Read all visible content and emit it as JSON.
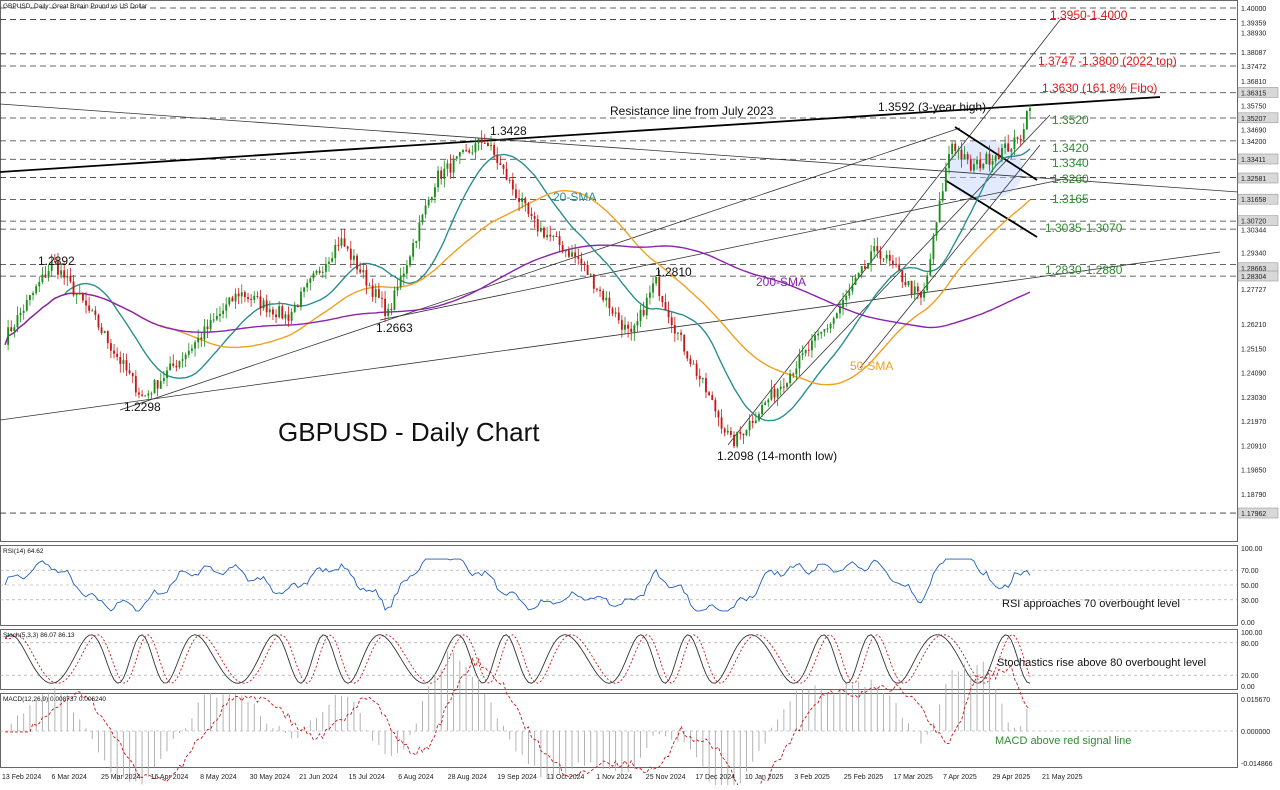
{
  "header": {
    "main_title": "GBPUSD, Daily:  Great Britain Pound vs US Dollar",
    "chart_title": "GBPUSD - Daily Chart"
  },
  "price_axis": {
    "labels": [
      "1.40000",
      "1.39359",
      "1.38930",
      "1.38087",
      "1.37472",
      "1.36810",
      "1.36315",
      "1.35750",
      "1.35207",
      "1.34690",
      "1.34200",
      "1.33411",
      "1.32581",
      "1.31658",
      "1.30720",
      "1.30344",
      "1.29340",
      "1.28663",
      "1.28304",
      "1.27727",
      "1.26210",
      "1.25150",
      "1.24090",
      "1.23030",
      "1.21970",
      "1.20910",
      "1.19850",
      "1.18790",
      "1.17962"
    ],
    "highlight": [
      "1.36315",
      "1.35207",
      "1.33411",
      "1.32581",
      "1.31658",
      "1.30720",
      "1.28663",
      "1.28304",
      "1.17962"
    ]
  },
  "date_axis": [
    "13 Feb 2024",
    "6 Mar 2024",
    "25 Mar 2024",
    "16 Apr 2024",
    "8 May 2024",
    "30 May 2024",
    "21 Jun 2024",
    "15 Jul 2024",
    "6 Aug 2024",
    "28 Aug 2024",
    "19 Sep 2024",
    "11 Oct 2024",
    "1 Nov 2024",
    "25 Nov 2024",
    "17 Dec 2024",
    "10 Jan 2025",
    "3 Feb 2025",
    "25 Feb 2025",
    "17 Mar 2025",
    "7 Apr 2025",
    "29 Apr 2025",
    "21 May 2025"
  ],
  "levels": {
    "r1": "1.3950-1.4000",
    "r2": "1.3747 -1.3800 (2022 top)",
    "r3": "1.3630 (161.8% Fibo)",
    "s1": "1.3520",
    "s2": "1.3420",
    "s3": "1.3340",
    "s4": "1.3260",
    "s5": "1.3165",
    "s6": "1.3035-1.3070",
    "s7": "1.2830-1.2880"
  },
  "annotations": {
    "resistance": "Resistance line from July 2023",
    "high_3y": "1.3592 (3-year high)",
    "p1342": "1.3428",
    "p1289": "1.2892",
    "p1266": "1.2663",
    "p1229": "1.2298",
    "p1281": "1.2810",
    "low_14m": "1.2098 (14-month low)",
    "sma20": "20-SMA",
    "sma50": "50-SMA",
    "sma200": "200-SMA"
  },
  "rsi": {
    "title": "RSI(14) 64.62",
    "note": "RSI approaches 70 overbought level",
    "axis": [
      "100.00",
      "70.00",
      "50.00",
      "30.00",
      "0.00"
    ]
  },
  "stoch": {
    "title": "Stoch(5,3,3) 86.07 86.13",
    "note": "Stochastics rise above 80 overbought level",
    "axis": [
      "100.00",
      "80.00",
      "20.00",
      "0.00"
    ]
  },
  "macd": {
    "title": "MACD(12,26,9) 0.008737 0.006240",
    "note": "MACD above red signal line",
    "axis": [
      "0.015670",
      "0.000000",
      "-0.014866"
    ]
  },
  "colors": {
    "sma20": "#2a8f8f",
    "sma50": "#f0a020",
    "sma200": "#8b22b0",
    "bull": "#1a8c1a",
    "bear": "#c81818",
    "level_green": "#2e8b2e",
    "level_red": "#e0191b"
  },
  "chart_data": {
    "type": "candlestick",
    "instrument": "GBPUSD",
    "timeframe": "Daily",
    "ylim": [
      1.1796,
      1.4
    ],
    "key_points": [
      {
        "date": "13 Feb 2024",
        "value": 1.256
      },
      {
        "date": "6 Mar 2024",
        "value": 1.2892
      },
      {
        "date": "25 Mar 2024",
        "value": 1.264
      },
      {
        "date": "16 Apr 2024",
        "value": 1.2298
      },
      {
        "date": "8 May 2024",
        "value": 1.252
      },
      {
        "date": "30 May 2024",
        "value": 1.276
      },
      {
        "date": "21 Jun 2024",
        "value": 1.265
      },
      {
        "date": "15 Jul 2024",
        "value": 1.299
      },
      {
        "date": "6 Aug 2024",
        "value": 1.2663
      },
      {
        "date": "28 Aug 2024",
        "value": 1.326
      },
      {
        "date": "19 Sep 2024",
        "value": 1.3428
      },
      {
        "date": "11 Oct 2024",
        "value": 1.306
      },
      {
        "date": "1 Nov 2024",
        "value": 1.29
      },
      {
        "date": "25 Nov 2024",
        "value": 1.256
      },
      {
        "date": "6 Dec 2024",
        "value": 1.281
      },
      {
        "date": "17 Dec 2024",
        "value": 1.256
      },
      {
        "date": "10 Jan 2025",
        "value": 1.2098
      },
      {
        "date": "3 Feb 2025",
        "value": 1.238
      },
      {
        "date": "25 Feb 2025",
        "value": 1.264
      },
      {
        "date": "17 Mar 2025",
        "value": 1.295
      },
      {
        "date": "7 Apr 2025",
        "value": 1.272
      },
      {
        "date": "20 Apr 2025",
        "value": 1.342
      },
      {
        "date": "29 Apr 2025",
        "value": 1.33
      },
      {
        "date": "21 May 2025",
        "value": 1.342
      },
      {
        "date": "26 May 2025",
        "value": 1.3592
      }
    ],
    "horizontal_levels": [
      1.4,
      1.395,
      1.38,
      1.3747,
      1.363,
      1.352,
      1.342,
      1.334,
      1.326,
      1.3165,
      1.307,
      1.3035,
      1.288,
      1.283,
      1.1796
    ],
    "rsi_last": 64.62,
    "stoch_last": [
      86.07,
      86.13
    ],
    "macd_last": [
      0.008737,
      0.00624
    ]
  }
}
